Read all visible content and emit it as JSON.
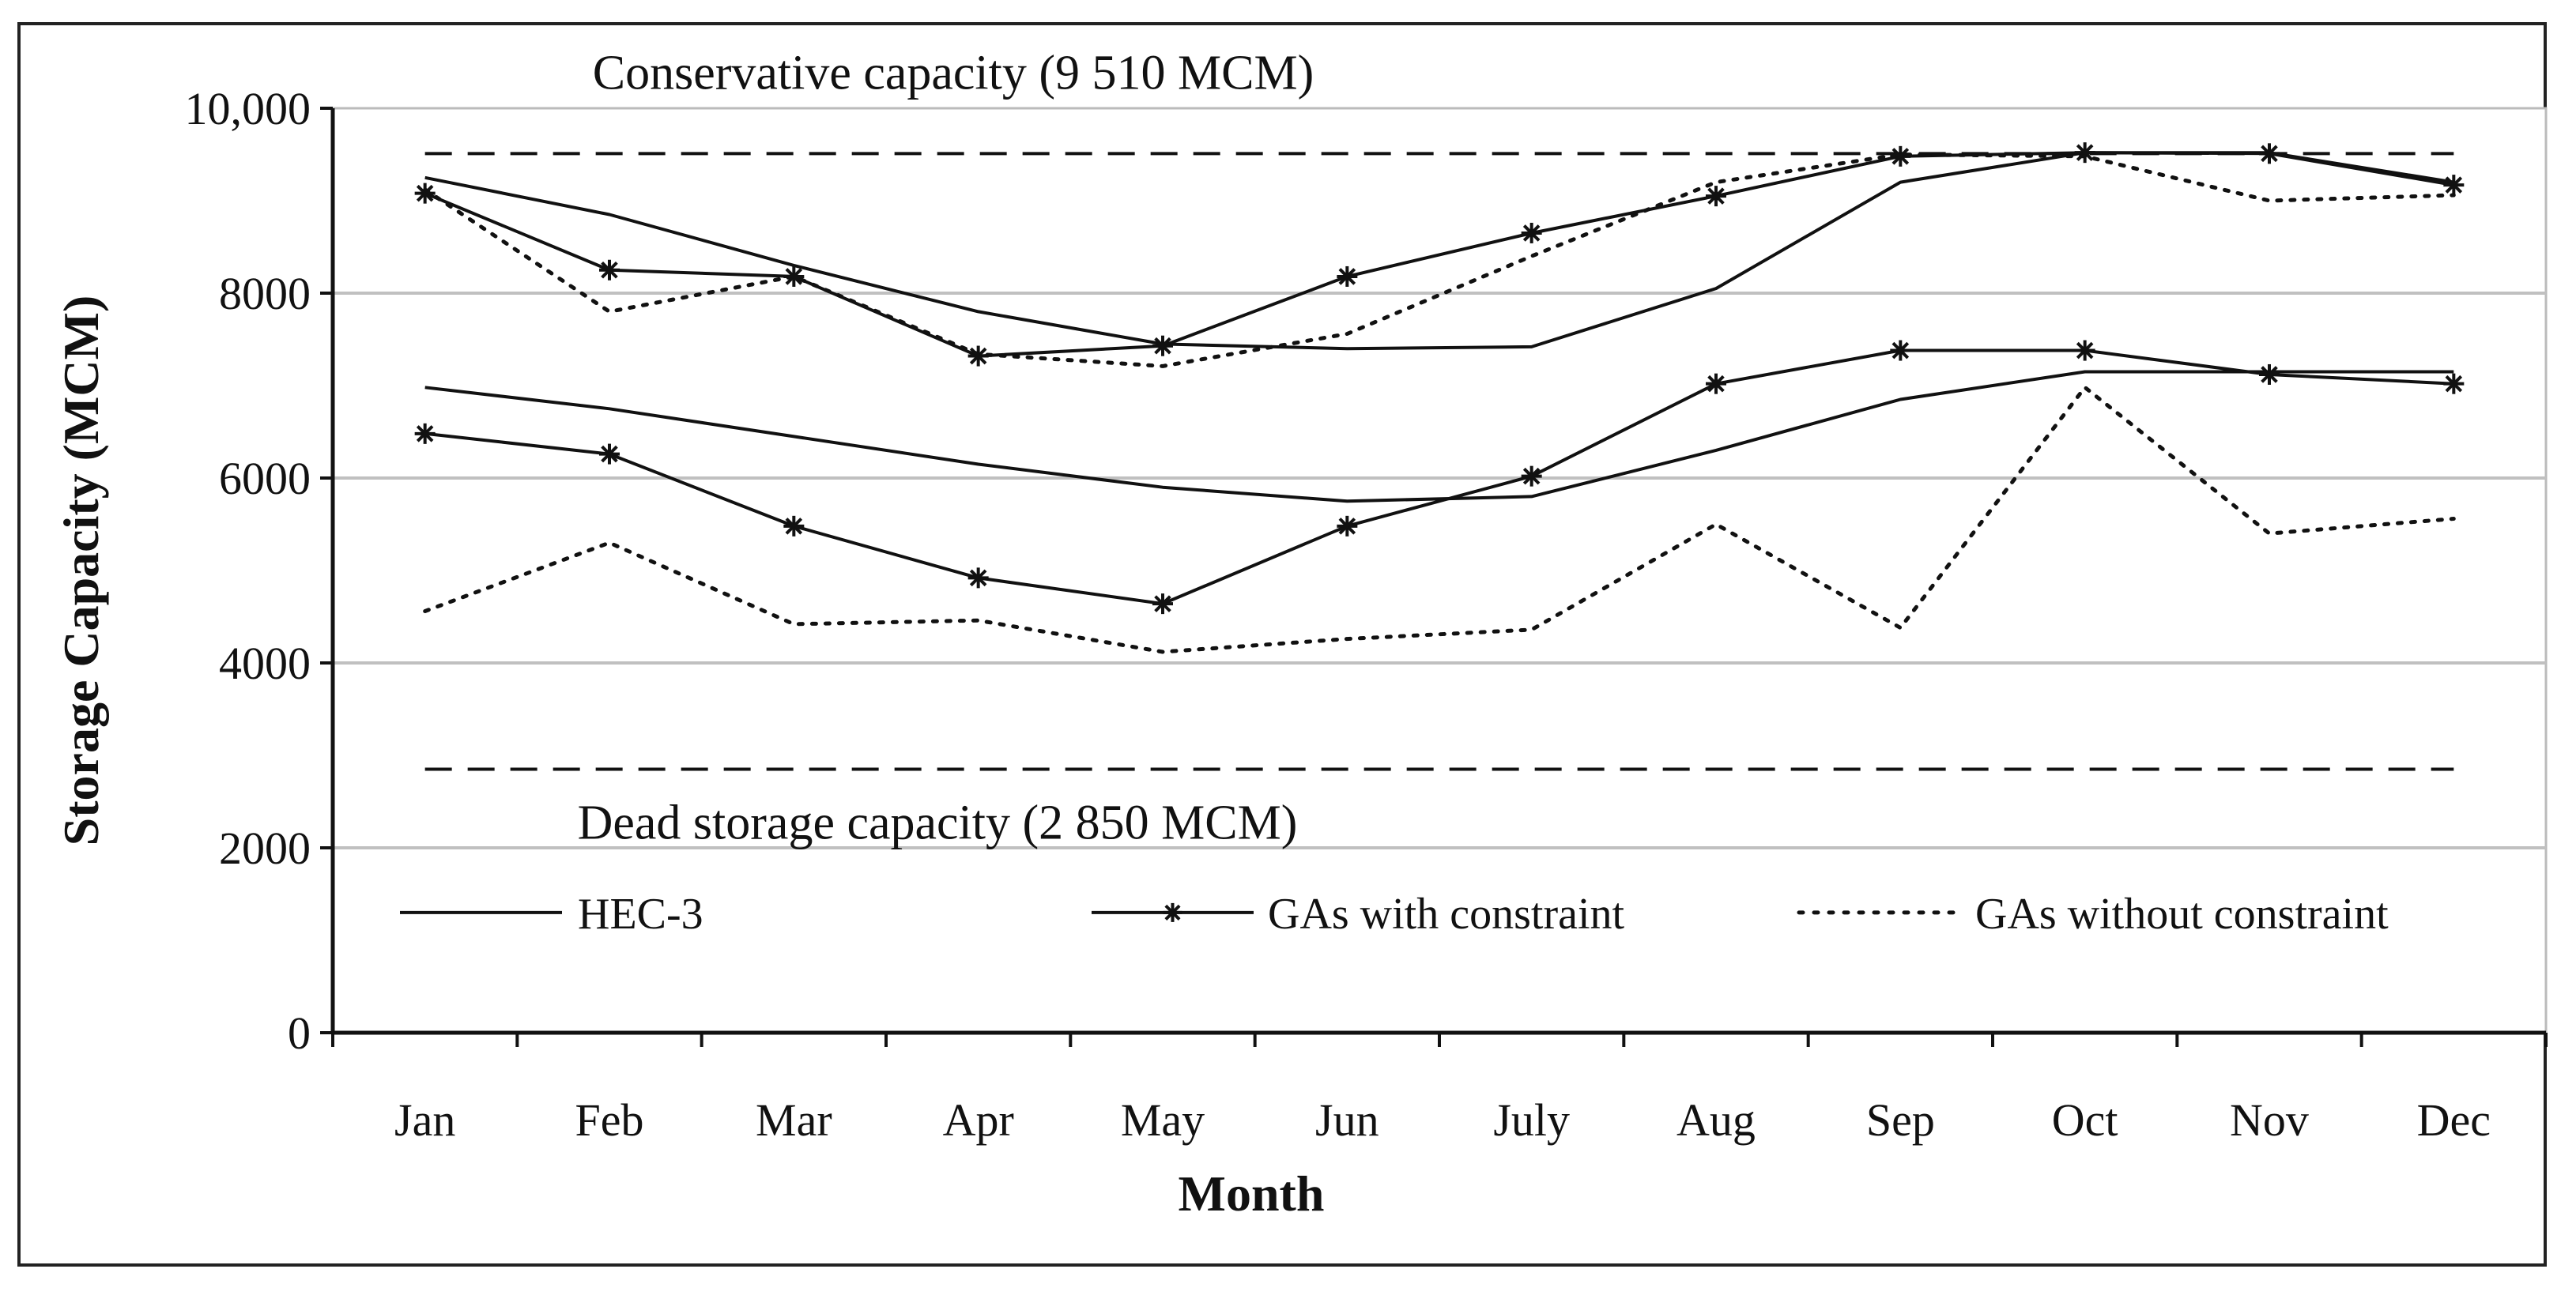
{
  "chart_data": {
    "type": "line",
    "title": "",
    "xlabel": "Month",
    "ylabel": "Storage Capacity (MCM)",
    "categories": [
      "Jan",
      "Feb",
      "Mar",
      "Apr",
      "May",
      "Jun",
      "July",
      "Aug",
      "Sep",
      "Oct",
      "Nov",
      "Dec"
    ],
    "ylim": [
      0,
      10000
    ],
    "yticks": [
      {
        "value": 0,
        "label": "0"
      },
      {
        "value": 2000,
        "label": "2000"
      },
      {
        "value": 4000,
        "label": "4000"
      },
      {
        "value": 6000,
        "label": "6000"
      },
      {
        "value": 8000,
        "label": "8000"
      },
      {
        "value": 10000,
        "label": "10,000"
      }
    ],
    "grid": true,
    "reference_lines": [
      {
        "label": "Conservative capacity (9 510 MCM)",
        "value": 9510
      },
      {
        "label": "Dead storage capacity (2 850 MCM)",
        "value": 2850
      }
    ],
    "series": [
      {
        "name": "HEC-3",
        "style": "solid",
        "values": [
          9250,
          8850,
          8300,
          7800,
          7450,
          7400,
          7420,
          8050,
          9200,
          9520,
          9520,
          9200
        ]
      },
      {
        "name": "HEC-3",
        "style": "solid",
        "values": [
          6980,
          6750,
          6450,
          6150,
          5900,
          5750,
          5800,
          6300,
          6850,
          7150,
          7150,
          7150
        ]
      },
      {
        "name": "GAs with constraint",
        "style": "solid-star",
        "values": [
          9080,
          8250,
          8180,
          7320,
          7430,
          8180,
          8650,
          9050,
          9480,
          9520,
          9510,
          9170
        ]
      },
      {
        "name": "GAs with constraint",
        "style": "solid-star",
        "values": [
          6480,
          6260,
          5480,
          4920,
          4640,
          5480,
          6020,
          7020,
          7380,
          7380,
          7120,
          7020
        ]
      },
      {
        "name": "GAs without constraint",
        "style": "dotted",
        "values": [
          9120,
          7800,
          8180,
          7340,
          7210,
          7560,
          8400,
          9200,
          9500,
          9480,
          9000,
          9060
        ]
      },
      {
        "name": "GAs without constraint",
        "style": "dotted",
        "values": [
          4560,
          5300,
          4420,
          4460,
          4120,
          4260,
          4360,
          5500,
          4380,
          6980,
          5400,
          5560
        ]
      }
    ],
    "legend": {
      "placement": "bottom-inside",
      "entries": [
        {
          "name": "HEC-3",
          "style": "solid"
        },
        {
          "name": "GAs with constraint",
          "style": "solid-star"
        },
        {
          "name": "GAs without constraint",
          "style": "dotted"
        }
      ]
    }
  }
}
